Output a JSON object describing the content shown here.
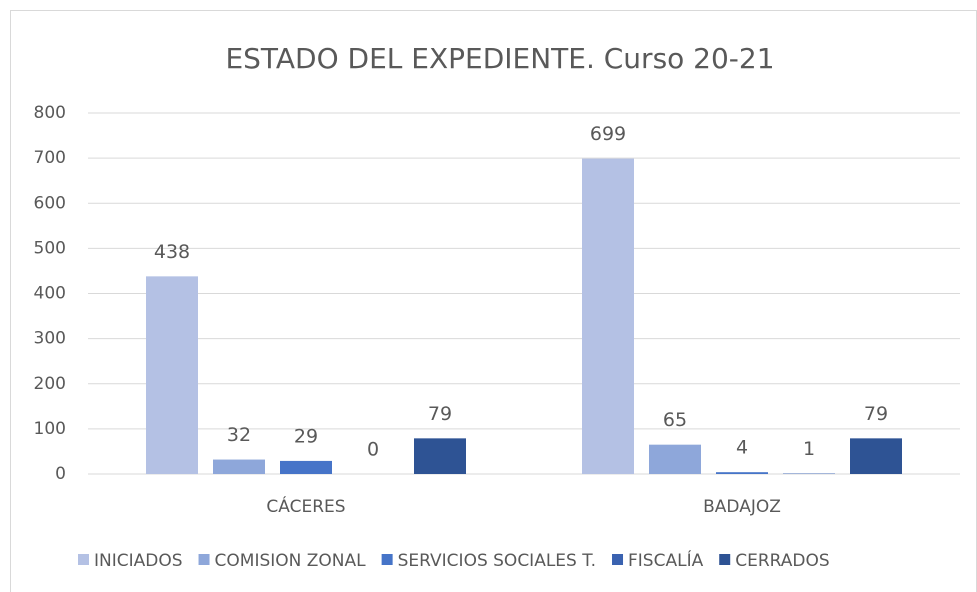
{
  "chart_data": {
    "type": "bar",
    "title": "ESTADO DEL EXPEDIENTE. Curso 20-21",
    "categories": [
      "CÁCERES",
      "BADAJOZ"
    ],
    "series": [
      {
        "name": "INICIADOS",
        "color": "#b4c1e4",
        "values": [
          438,
          699
        ]
      },
      {
        "name": "COMISION ZONAL",
        "color": "#8ea7da",
        "values": [
          32,
          65
        ]
      },
      {
        "name": "SERVICIOS SOCIALES T.",
        "color": "#4674c8",
        "values": [
          29,
          4
        ]
      },
      {
        "name": "FISCALÍA",
        "color": "#3a62b0",
        "values": [
          0,
          1
        ]
      },
      {
        "name": "CERRADOS",
        "color": "#2e5394",
        "values": [
          79,
          79
        ]
      }
    ],
    "ylim": [
      0,
      800
    ],
    "yticks": [
      0,
      100,
      200,
      300,
      400,
      500,
      600,
      700,
      800
    ],
    "grid": true,
    "legend": "bottom"
  }
}
